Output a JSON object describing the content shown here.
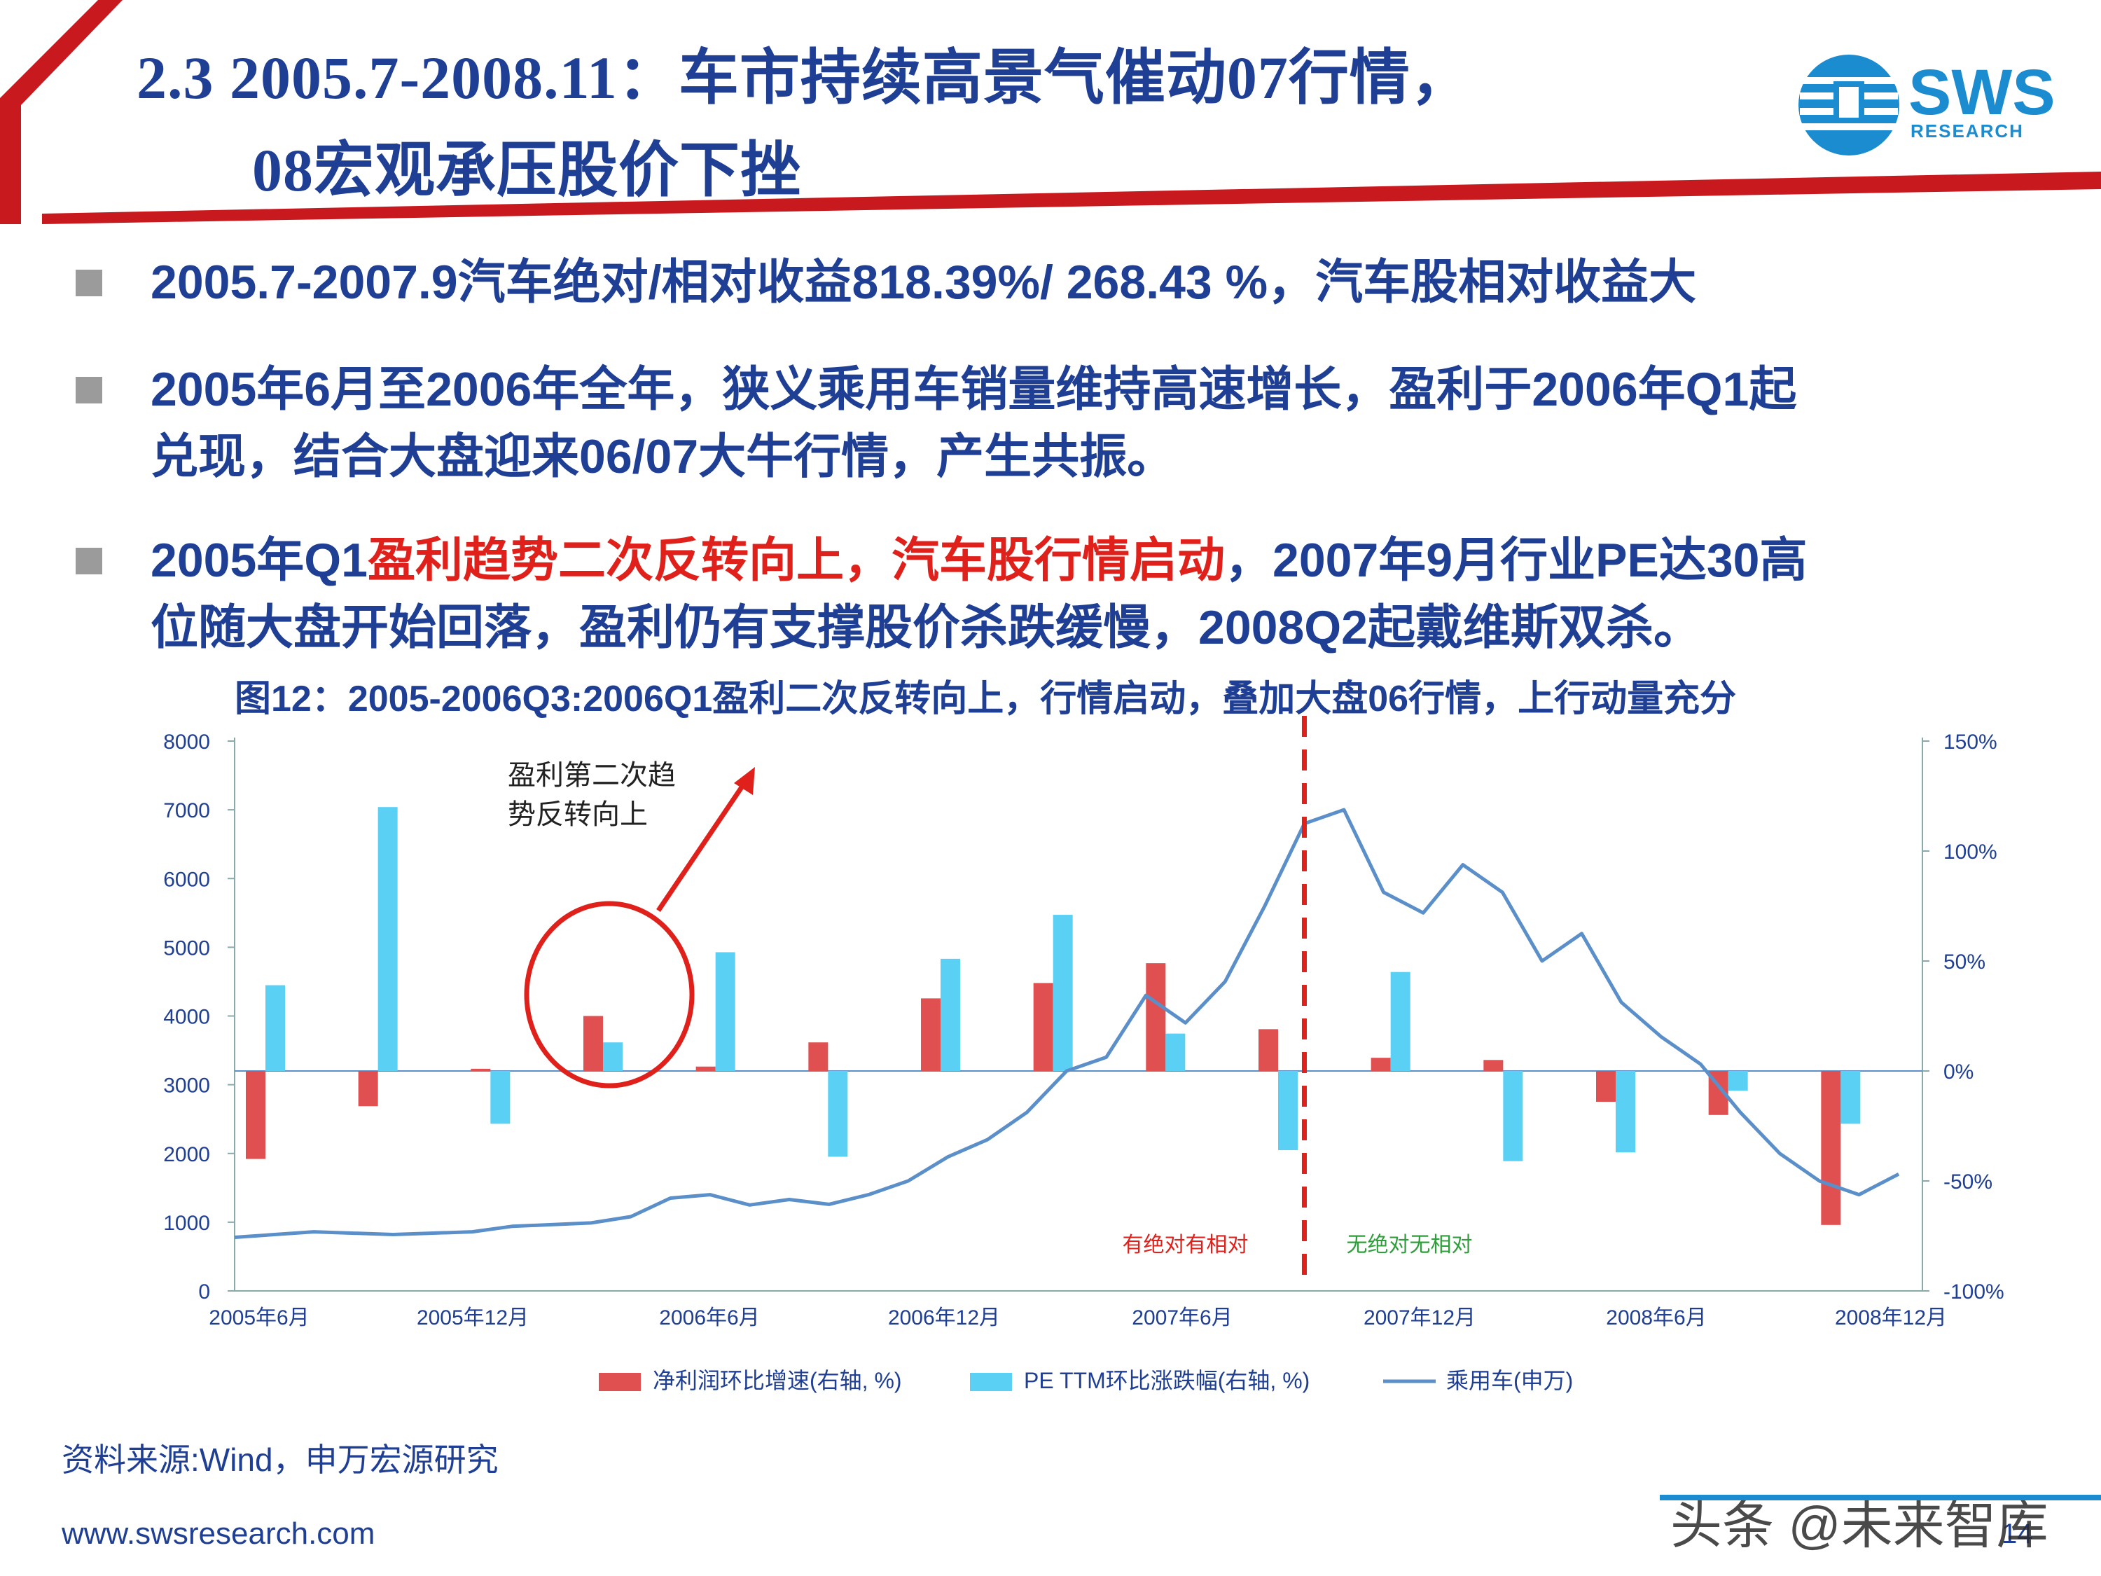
{
  "slide": {
    "title_line1": "2.3 2005.7-2008.11：车市持续高景气催动07行情，",
    "title_line2": "08宏观承压股价下挫",
    "logo_text": "SWS",
    "logo_sub": "RESEARCH",
    "bullets": [
      {
        "plain": "2005.7-2007.9汽车绝对/相对收益818.39%/ 268.43 %，汽车股相对收益大"
      },
      {
        "line1": "2005年6月至2006年全年，狭义乘用车销量维持高速增长，盈利于2006年Q1起",
        "line2": "兑现，结合大盘迎来06/07大牛行情，产生共振。"
      },
      {
        "pre": "2005年Q1",
        "red": "盈利趋势二次反转向上，汽车股行情启动",
        "post": "，2007年9月行业PE达30高",
        "line2": "位随大盘开始回落，盈利仍有支撑股价杀跌缓慢，2008Q2起戴维斯双杀。"
      }
    ],
    "figure_title": "图12：2005-2006Q3:2006Q1盈利二次反转向上，行情启动，叠加大盘06行情，上行动量充分",
    "source": "资料来源:Wind，申万宏源研究",
    "footer_url": "www.swsresearch.com",
    "page_number": "14",
    "watermark": "头条 @未来智库",
    "colors": {
      "title_blue": "#1f3f95",
      "red": "#e0201a",
      "bar_red": "#e05050",
      "bar_cyan": "#5bd0f5",
      "line_blue": "#5b8fc9"
    }
  },
  "chart_data": {
    "type": "bar+line",
    "x_tick_labels": [
      "2005年6月",
      "2005年12月",
      "2006年6月",
      "2006年12月",
      "2007年6月",
      "2007年12月",
      "2008年6月",
      "2008年12月"
    ],
    "left_axis": {
      "ticks": [
        "0",
        "1000",
        "2000",
        "3000",
        "4000",
        "5000",
        "6000",
        "7000",
        "8000"
      ],
      "range": [
        0,
        8000
      ]
    },
    "right_axis": {
      "ticks": [
        "-100%",
        "-50%",
        "0%",
        "50%",
        "100%",
        "150%"
      ],
      "range": [
        -100,
        150
      ]
    },
    "bar_categories": [
      "2005Q2",
      "2005Q3",
      "2005Q4",
      "2006Q1",
      "2006Q2",
      "2006Q3",
      "2006Q4",
      "2007Q1",
      "2007Q2",
      "2007Q3",
      "2007Q4",
      "2008Q1",
      "2008Q2",
      "2008Q3",
      "2008Q4"
    ],
    "series": [
      {
        "name": "净利润环比增速(右轴, %)",
        "axis": "right",
        "type": "bar",
        "values": [
          -40,
          -16,
          1,
          25,
          2,
          13,
          33,
          40,
          49,
          19,
          6,
          5,
          -14,
          -20,
          -70
        ]
      },
      {
        "name": "PE TTM环比涨跌幅(右轴, %)",
        "axis": "right",
        "type": "bar",
        "values": [
          39,
          120,
          -24,
          13,
          54,
          -39,
          51,
          71,
          17,
          -36,
          45,
          -41,
          -37,
          -9,
          -24
        ]
      },
      {
        "name": "乘用车(申万)",
        "axis": "left",
        "type": "line",
        "points": [
          [
            "2005-06",
            780
          ],
          [
            "2005-08",
            860
          ],
          [
            "2005-10",
            820
          ],
          [
            "2005-12",
            860
          ],
          [
            "2006-01",
            940
          ],
          [
            "2006-03",
            990
          ],
          [
            "2006-04",
            1080
          ],
          [
            "2006-05",
            1350
          ],
          [
            "2006-06",
            1400
          ],
          [
            "2006-07",
            1250
          ],
          [
            "2006-08",
            1330
          ],
          [
            "2006-09",
            1260
          ],
          [
            "2006-10",
            1400
          ],
          [
            "2006-11",
            1600
          ],
          [
            "2006-12",
            1950
          ],
          [
            "2007-01",
            2200
          ],
          [
            "2007-02",
            2600
          ],
          [
            "2007-03",
            3200
          ],
          [
            "2007-04",
            3400
          ],
          [
            "2007-05",
            4300
          ],
          [
            "2007-06",
            3900
          ],
          [
            "2007-07",
            4500
          ],
          [
            "2007-08",
            5600
          ],
          [
            "2007-09",
            6800
          ],
          [
            "2007-10",
            7000
          ],
          [
            "2007-11",
            5800
          ],
          [
            "2007-12",
            5500
          ],
          [
            "2008-01",
            6200
          ],
          [
            "2008-02",
            5800
          ],
          [
            "2008-03",
            4800
          ],
          [
            "2008-04",
            5200
          ],
          [
            "2008-05",
            4200
          ],
          [
            "2008-06",
            3700
          ],
          [
            "2008-07",
            3300
          ],
          [
            "2008-08",
            2600
          ],
          [
            "2008-09",
            2000
          ],
          [
            "2008-10",
            1600
          ],
          [
            "2008-11",
            1400
          ],
          [
            "2008-12",
            1700
          ]
        ]
      }
    ],
    "annotations": {
      "circle_note": "盈利第二次趋\n势反转向上",
      "left_zone": "有绝对有相对",
      "right_zone": "无绝对无相对",
      "divider_x": "2007-09"
    },
    "legend": "bottom"
  }
}
